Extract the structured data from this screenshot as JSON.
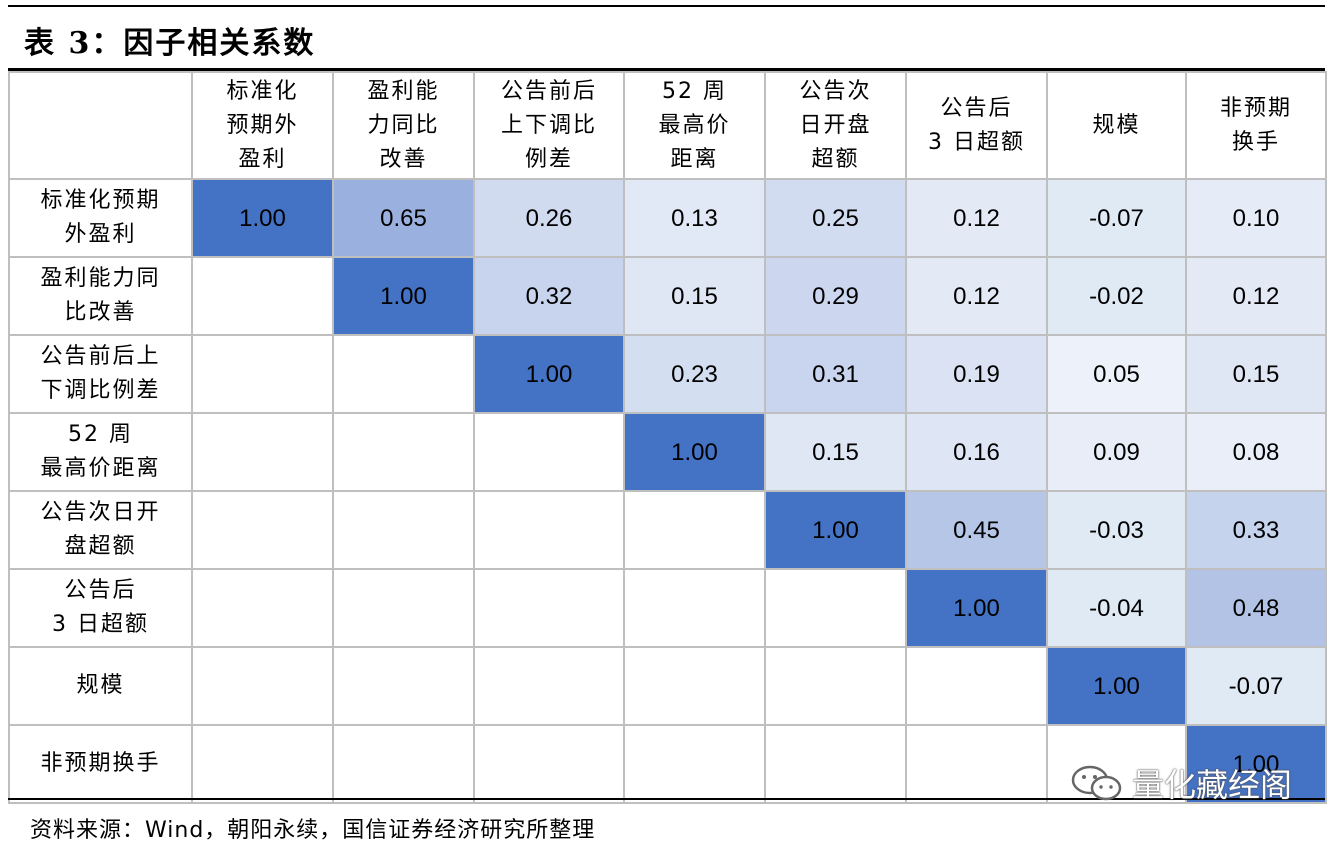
{
  "title": "表 3：因子相关系数",
  "columns": [
    {
      "line1": "标准化",
      "line2": "预期外",
      "line3": "盈利"
    },
    {
      "line1": "盈利能",
      "line2": "力同比",
      "line3": "改善"
    },
    {
      "line1": "公告前后",
      "line2": "上下调比",
      "line3": "例差"
    },
    {
      "line1": "52 周",
      "line2": "最高价",
      "line3": "距离"
    },
    {
      "line1": "公告次",
      "line2": "日开盘",
      "line3": "超额"
    },
    {
      "line1": "公告后",
      "line2": "3 日超额",
      "line3": ""
    },
    {
      "line1": "规模",
      "line2": "",
      "line3": ""
    },
    {
      "line1": "非预期",
      "line2": "换手",
      "line3": ""
    }
  ],
  "rows": [
    {
      "line1": "标准化预期",
      "line2": "外盈利",
      "values": [
        "1.00",
        "0.65",
        "0.26",
        "0.13",
        "0.25",
        "0.12",
        "-0.07",
        "0.10"
      ]
    },
    {
      "line1": "盈利能力同",
      "line2": "比改善",
      "values": [
        "",
        "1.00",
        "0.32",
        "0.15",
        "0.29",
        "0.12",
        "-0.02",
        "0.12"
      ]
    },
    {
      "line1": "公告前后上",
      "line2": "下调比例差",
      "values": [
        "",
        "",
        "1.00",
        "0.23",
        "0.31",
        "0.19",
        "0.05",
        "0.15"
      ]
    },
    {
      "line1": "52 周",
      "line2": "最高价距离",
      "values": [
        "",
        "",
        "",
        "1.00",
        "0.15",
        "0.16",
        "0.09",
        "0.08"
      ]
    },
    {
      "line1": "公告次日开",
      "line2": "盘超额",
      "values": [
        "",
        "",
        "",
        "",
        "1.00",
        "0.45",
        "-0.03",
        "0.33"
      ]
    },
    {
      "line1": "公告后",
      "line2": "3 日超额",
      "values": [
        "",
        "",
        "",
        "",
        "",
        "1.00",
        "-0.04",
        "0.48"
      ]
    },
    {
      "line1": "规模",
      "line2": "",
      "values": [
        "",
        "",
        "",
        "",
        "",
        "",
        "1.00",
        "-0.07"
      ]
    },
    {
      "line1": "非预期换手",
      "line2": "",
      "values": [
        "",
        "",
        "",
        "",
        "",
        "",
        "",
        "1.00"
      ]
    }
  ],
  "source": "资料来源：Wind，朝阳永续，国信证券经济研究所整理",
  "watermark": "量化藏经阁",
  "colors": {
    "accent": "#4472c4",
    "positive_max": "#4472c4",
    "negative_tint": "#ddebf7",
    "grid": "#bfbfbf"
  }
}
